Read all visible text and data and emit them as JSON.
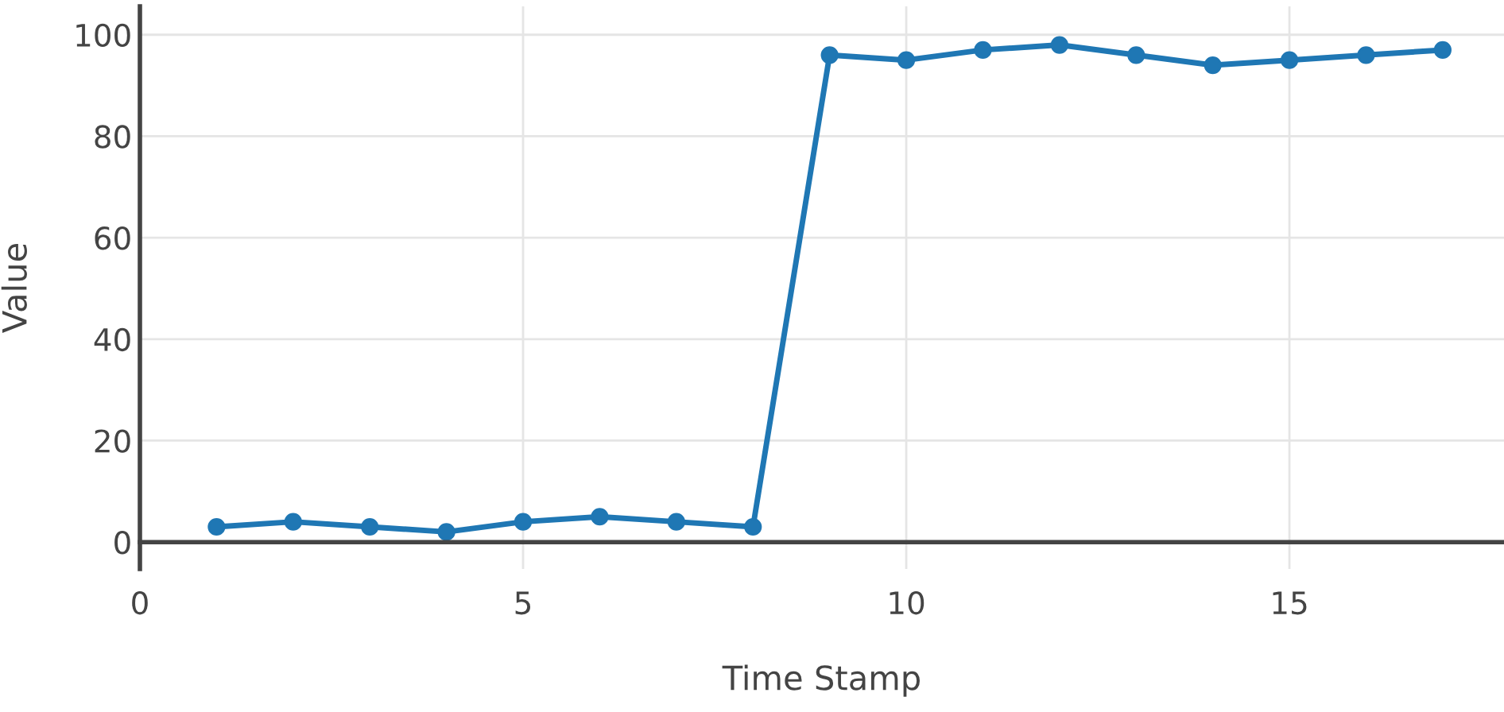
{
  "chart_data": {
    "type": "line",
    "xlabel": "Time Stamp",
    "ylabel": "Value",
    "x": [
      1,
      2,
      3,
      4,
      5,
      6,
      7,
      8,
      9,
      10,
      11,
      12,
      13,
      14,
      15,
      16,
      17
    ],
    "series": [
      {
        "color": "#1f77b4",
        "values": [
          3,
          4,
          3,
          2,
          4,
          5,
          4,
          3,
          96,
          95,
          97,
          98,
          96,
          94,
          95,
          96,
          97
        ]
      }
    ],
    "xlim": [
      0,
      17.8
    ],
    "ylim": [
      -5.3,
      105.6
    ],
    "xticks": [
      0,
      5,
      10,
      15
    ],
    "yticks": [
      0,
      20,
      40,
      60,
      80,
      100
    ],
    "grid": true,
    "marker": "circle",
    "line_style": "solid"
  }
}
